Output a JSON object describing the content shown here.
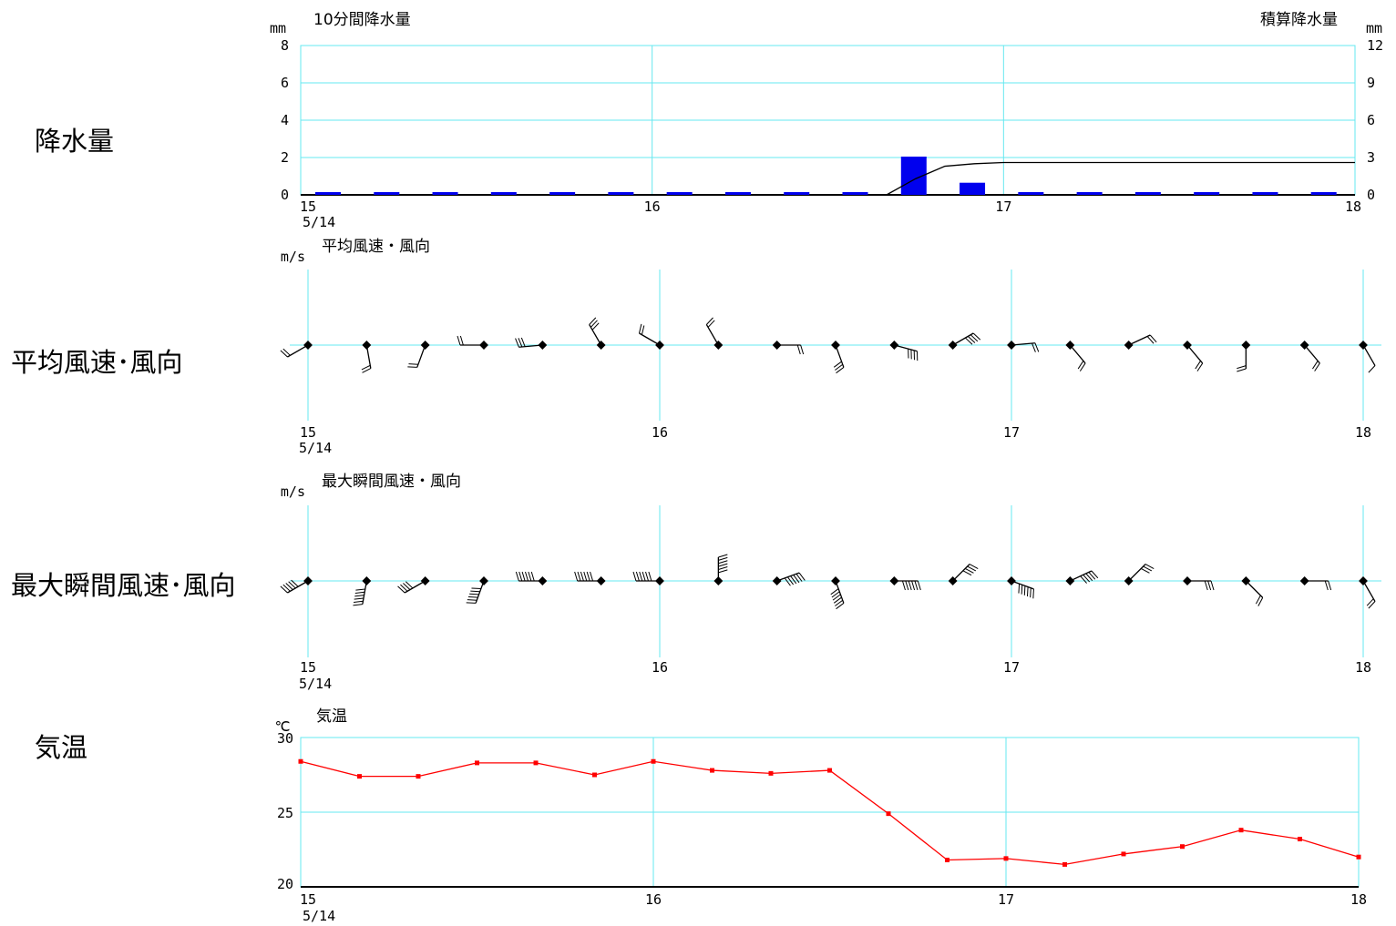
{
  "labels": {
    "precip": "降水量",
    "avg_wind": "平均風速･風向",
    "max_wind": "最大瞬間風速･風向",
    "temp": "気温"
  },
  "colors": {
    "grid": "#66e8f0",
    "bar": "#0000ee",
    "line": "#000000",
    "temp": "#ff0000"
  },
  "chart_data": [
    {
      "type": "bar",
      "title": "10分間降水量",
      "title_right": "積算降水量",
      "yunit": "mm",
      "yunit_right": "mm",
      "ylim": [
        0,
        8
      ],
      "yticks": [
        0,
        2,
        4,
        6,
        8
      ],
      "ylim_right": [
        0,
        12
      ],
      "yticks_right": [
        0,
        3,
        6,
        9,
        12
      ],
      "x": [
        15.0,
        15.1667,
        15.3333,
        15.5,
        15.6667,
        15.8333,
        16.0,
        16.1667,
        16.3333,
        16.5,
        16.6667,
        16.8333,
        17.0,
        17.1667,
        17.3333,
        17.5,
        17.6667,
        17.8333
      ],
      "series": [
        {
          "values": [
            0,
            0,
            0,
            0,
            0,
            0,
            0,
            0,
            0,
            0,
            2.0,
            0.6,
            0,
            0,
            0,
            0,
            0,
            0
          ]
        },
        {
          "type": "line",
          "axis": "right",
          "x": [
            16.667,
            16.75,
            16.833,
            16.917,
            17.0,
            18.0
          ],
          "values": [
            0,
            1.3,
            2.3,
            2.5,
            2.6,
            2.6
          ]
        }
      ],
      "xticks": [
        "15",
        "16",
        "17",
        "18"
      ],
      "date": "5/14",
      "grid": true
    },
    {
      "type": "scatter",
      "title": "平均風速・風向",
      "yunit": "m/s",
      "x": [
        15.0,
        15.1667,
        15.3333,
        15.5,
        15.6667,
        15.8333,
        16.0,
        16.1667,
        16.3333,
        16.5,
        16.6667,
        16.8333,
        17.0,
        17.1667,
        17.3333,
        17.5,
        17.6667,
        17.8333,
        18.0
      ],
      "wind_from_deg": [
        240,
        170,
        200,
        270,
        265,
        330,
        300,
        330,
        90,
        160,
        105,
        60,
        85,
        140,
        65,
        140,
        180,
        140,
        150
      ],
      "speed_ms": [
        2,
        2,
        2,
        2,
        3,
        3,
        2,
        2,
        2,
        3,
        4,
        4,
        2,
        2,
        2,
        2,
        2,
        2,
        1
      ],
      "xticks": [
        "15",
        "16",
        "17",
        "18"
      ],
      "date": "5/14",
      "grid": true
    },
    {
      "type": "scatter",
      "title": "最大瞬間風速・風向",
      "yunit": "m/s",
      "x": [
        15.0,
        15.1667,
        15.3333,
        15.5,
        15.6667,
        15.8333,
        16.0,
        16.1667,
        16.3333,
        16.5,
        16.6667,
        16.8333,
        17.0,
        17.1667,
        17.3333,
        17.5,
        17.6667,
        17.8333,
        18.0
      ],
      "wind_from_deg": [
        240,
        190,
        240,
        200,
        270,
        270,
        270,
        0,
        70,
        160,
        90,
        45,
        110,
        65,
        45,
        90,
        135,
        90,
        150
      ],
      "speed_ms": [
        5,
        6,
        4,
        6,
        9,
        8,
        6,
        6,
        8,
        7,
        11,
        4,
        6,
        5,
        3,
        3,
        2,
        2,
        2
      ],
      "xticks": [
        "15",
        "16",
        "17",
        "18"
      ],
      "date": "5/14",
      "grid": true
    },
    {
      "type": "line",
      "title": "気温",
      "yunit": "℃",
      "ylim": [
        20,
        30
      ],
      "yticks": [
        20,
        25,
        30
      ],
      "x": [
        15.0,
        15.1667,
        15.3333,
        15.5,
        15.6667,
        15.8333,
        16.0,
        16.1667,
        16.3333,
        16.5,
        16.6667,
        16.8333,
        17.0,
        17.1667,
        17.3333,
        17.5,
        17.6667,
        17.8333,
        18.0
      ],
      "series": [
        {
          "values": [
            28.4,
            27.4,
            27.4,
            28.3,
            28.3,
            27.5,
            28.4,
            27.8,
            27.6,
            27.8,
            24.9,
            21.8,
            21.9,
            21.5,
            22.2,
            22.7,
            23.8,
            23.2,
            22.0
          ]
        }
      ],
      "xticks": [
        "15",
        "16",
        "17",
        "18"
      ],
      "date": "5/14",
      "grid": true
    }
  ]
}
